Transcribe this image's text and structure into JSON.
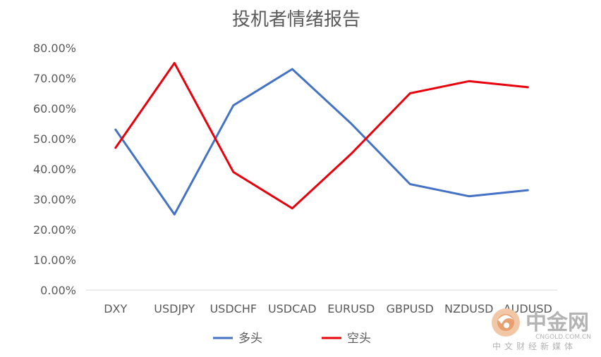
{
  "chart_data": {
    "type": "line",
    "title": "投机者情绪报告",
    "categories": [
      "DXY",
      "USDJPY",
      "USDCHF",
      "USDCAD",
      "EURUSD",
      "GBPUSD",
      "NZDUSD",
      "AUDUSD"
    ],
    "series": [
      {
        "name": "多头",
        "color": "#4472C4",
        "values": [
          0.53,
          0.25,
          0.61,
          0.73,
          0.55,
          0.35,
          0.31,
          0.33
        ]
      },
      {
        "name": "空头",
        "color": "#E8000B",
        "values": [
          0.47,
          0.75,
          0.39,
          0.27,
          0.45,
          0.65,
          0.69,
          0.67
        ]
      }
    ],
    "ylim": [
      0,
      0.8
    ],
    "y_ticks": [
      "0.00%",
      "10.00%",
      "20.00%",
      "30.00%",
      "40.00%",
      "50.00%",
      "60.00%",
      "70.00%",
      "80.00%"
    ],
    "grid": false,
    "legend_position": "bottom"
  },
  "watermark": {
    "brand": "中金网",
    "domain": "CNGOLD.COM.CN",
    "tagline": "中文财经新媒体"
  }
}
